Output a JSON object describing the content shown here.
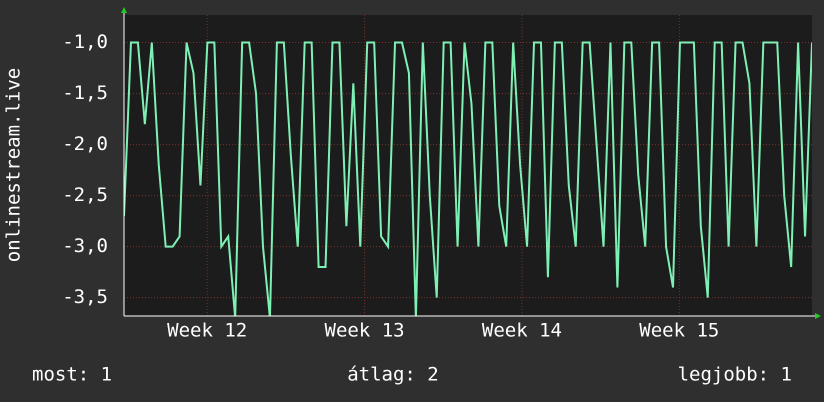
{
  "chart_data": {
    "type": "line",
    "ylabel": "onlinestream.live",
    "color": "#7ff0b4",
    "xlim": [
      0,
      30.6
    ],
    "xticks": [
      {
        "value": 3.7,
        "label": "Week 12"
      },
      {
        "value": 10.7,
        "label": "Week 13"
      },
      {
        "value": 17.7,
        "label": "Week 14"
      },
      {
        "value": 24.7,
        "label": "Week 15"
      }
    ],
    "ylim": [
      -3.68,
      -0.73
    ],
    "yticks": [
      {
        "value": -1,
        "label": "-1,0"
      },
      {
        "value": -1.5,
        "label": "-1,5"
      },
      {
        "value": -2,
        "label": "-2,0"
      },
      {
        "value": -2.5,
        "label": "-2,5"
      },
      {
        "value": -3,
        "label": "-3,0"
      },
      {
        "value": -3.5,
        "label": "-3,5"
      }
    ],
    "grid": true,
    "values": [
      -2.7,
      -1,
      -1,
      -1.8,
      -1,
      -2.2,
      -3,
      -3,
      -2.9,
      -1,
      -1.3,
      -2.4,
      -1,
      -1,
      -3,
      -2.9,
      -3.7,
      -1,
      -1,
      -1.5,
      -3,
      -3.7,
      -1,
      -1,
      -2.1,
      -3,
      -1,
      -1,
      -3.2,
      -3.2,
      -1,
      -1,
      -2.8,
      -1.4,
      -3,
      -1,
      -1,
      -2.9,
      -3,
      -1,
      -1,
      -1.3,
      -3.7,
      -1,
      -2.5,
      -3.5,
      -1,
      -1,
      -3,
      -1,
      -1.6,
      -3,
      -1,
      -1,
      -2.6,
      -3,
      -1,
      -2.2,
      -3,
      -1,
      -1,
      -3.3,
      -1,
      -1,
      -2.4,
      -3,
      -1,
      -1,
      -2,
      -3,
      -1,
      -3.4,
      -1,
      -1,
      -2.3,
      -3,
      -1,
      -1,
      -3,
      -3.4,
      -1,
      -1,
      -1,
      -2.8,
      -3.5,
      -1,
      -1,
      -3,
      -1,
      -1,
      -1.4,
      -3,
      -1,
      -1,
      -1,
      -2.5,
      -3.2,
      -1,
      -2.9,
      -1
    ],
    "legend": [
      "most: 1",
      "átlag: 2",
      "legjobb: 1"
    ]
  }
}
